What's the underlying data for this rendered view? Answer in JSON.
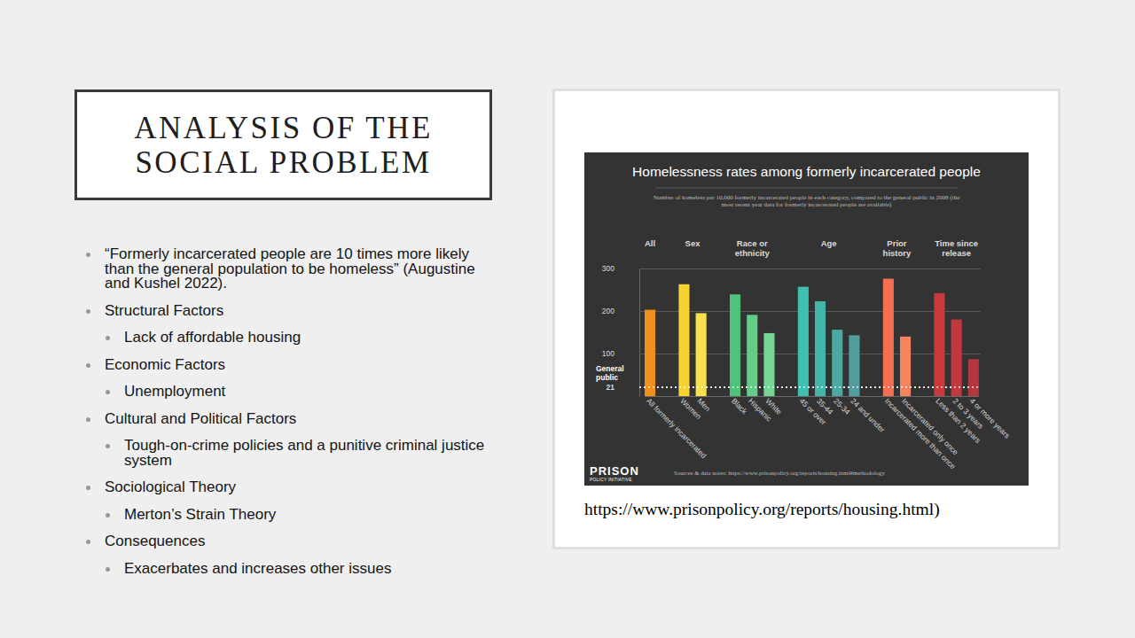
{
  "slide": {
    "title_lines": [
      "ANALYSIS OF THE",
      "SOCIAL PROBLEM"
    ],
    "bullets": [
      {
        "text": "“Formerly incarcerated people are 10 times more likely than the general population to be homeless” (Augustine and Kushel 2022).",
        "level": 1
      },
      {
        "text": "Structural Factors",
        "level": 1
      },
      {
        "text": "Lack of affordable housing",
        "level": 2
      },
      {
        "text": "Economic Factors",
        "level": 1
      },
      {
        "text": "Unemployment",
        "level": 2
      },
      {
        "text": "Cultural and Political Factors",
        "level": 1
      },
      {
        "text": "Tough-on-crime policies and a punitive criminal justice system",
        "level": 2
      },
      {
        "text": "Sociological Theory",
        "level": 1
      },
      {
        "text": "Merton’s Strain Theory",
        "level": 2
      },
      {
        "text": "Consequences",
        "level": 1
      },
      {
        "text": "Exacerbates and increases other issues",
        "level": 2
      }
    ],
    "image_caption": "https://www.prisonpolicy.org/reports/housing.html)"
  },
  "chart_data": {
    "type": "bar",
    "title": "Homelessness rates among formerly incarcerated people",
    "subtitle": "Number of homeless per 10,000 formerly incarcerated people in each category, compared to the general public in 2008 (the most recent year data for formerly incarcerated people are available)",
    "groups": [
      {
        "label": "All",
        "span": 1
      },
      {
        "label": "Sex",
        "span": 2
      },
      {
        "label": "Race or ethnicity",
        "span": 3
      },
      {
        "label": "Age",
        "span": 4
      },
      {
        "label": "Prior history",
        "span": 2
      },
      {
        "label": "Time since release",
        "span": 3
      }
    ],
    "categories": [
      "All formerly incarcerated",
      "Women",
      "Men",
      "Black",
      "Hispanic",
      "White",
      "45 or over",
      "35-44",
      "25-34",
      "24 and under",
      "Incarcerated more than once",
      "Incarcerated only once",
      "Less than 2 years",
      "2 to 3 years",
      "4 or more years"
    ],
    "values": [
      203,
      263,
      195,
      239,
      191,
      148,
      257,
      223,
      156,
      143,
      276,
      140,
      242,
      180,
      87
    ],
    "colors": [
      "#f0901c",
      "#f6d332",
      "#f8e04c",
      "#4fc27c",
      "#62cc88",
      "#76d694",
      "#3fc0ae",
      "#44b5a8",
      "#4aa9a2",
      "#519e9d",
      "#f26f52",
      "#f4835f",
      "#c93a3c",
      "#c0393e",
      "#b5363f"
    ],
    "ylim": [
      0,
      300
    ],
    "yticks": [
      21,
      100,
      200,
      300
    ],
    "grid": true,
    "reference_line": {
      "value": 21,
      "label": "General public"
    },
    "logo": {
      "name": "PRISON",
      "subname": "POLICY INITIATIVE"
    },
    "source_note": "Sources & data notes: https://www.prisonpolicy.org/reports/housing.html#methodology"
  }
}
